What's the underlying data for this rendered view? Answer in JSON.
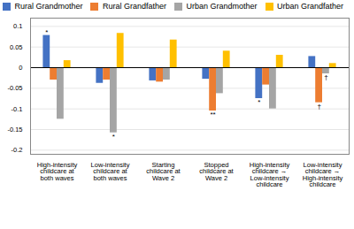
{
  "chart_data": {
    "type": "bar",
    "categories": [
      "High-intensity\nchildcare at\nboth waves",
      "Low-intensity\nchildcare at\nboth waves",
      "Starting\nchildcare at\nWave 2",
      "Stopped\nchildcare at\nWave 2",
      "High-intensity\nchildcare →\nLow-intensity\nchildcare",
      "Low-intensity\nchildcare →\nHigh-intensity\nchildcare"
    ],
    "series": [
      {
        "name": "Rural Grandmother",
        "color": "#4472C4",
        "values": [
          0.078,
          -0.038,
          -0.032,
          -0.028,
          -0.075,
          0.027
        ]
      },
      {
        "name": "Rural Grandfather",
        "color": "#ED7D31",
        "values": [
          -0.03,
          -0.03,
          -0.035,
          -0.105,
          -0.042,
          -0.085
        ]
      },
      {
        "name": "Urban Grandmother",
        "color": "#A5A5A5",
        "values": [
          -0.125,
          -0.158,
          -0.03,
          -0.063,
          -0.1,
          -0.015
        ]
      },
      {
        "name": "Urban Grandfather",
        "color": "#FFC000",
        "values": [
          0.017,
          0.083,
          0.067,
          0.04,
          0.03,
          0.01
        ]
      }
    ],
    "annotations": [
      {
        "category": "High-intensity\nchildcare at\nboth waves",
        "series": "Rural Grandmother",
        "text": "*"
      },
      {
        "category": "Low-intensity\nchildcare at\nboth waves",
        "series": "Urban Grandmother",
        "text": "*"
      },
      {
        "category": "Stopped\nchildcare at\nWave 2",
        "series": "Rural Grandfather",
        "text": "**"
      },
      {
        "category": "High-intensity\nchildcare →\nLow-intensity\nchildcare",
        "series": "Rural Grandmother",
        "text": "*"
      },
      {
        "category": "Low-intensity\nchildcare →\nHigh-intensity\nchildcare",
        "series": "Rural Grandfather",
        "text": "†"
      },
      {
        "category": "Low-intensity\nchildcare →\nHigh-intensity\nchildcare",
        "series": "Urban Grandmother",
        "text": "†"
      }
    ],
    "ylim": [
      -0.21,
      0.12
    ],
    "yticks": [
      -0.2,
      -0.15,
      -0.1,
      -0.05,
      0,
      0.05,
      0.1
    ],
    "grid": true,
    "legend": "top"
  }
}
